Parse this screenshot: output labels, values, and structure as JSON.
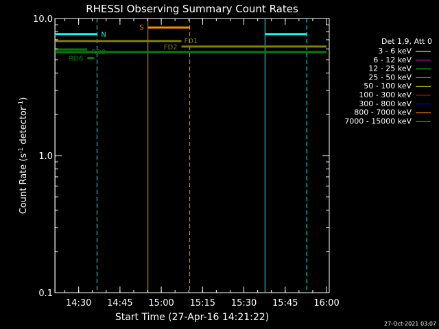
{
  "chart_data": {
    "type": "line",
    "title": "RHESSI Observing Summary Count Rates",
    "xlabel": "Start Time (27-Apr-16 14:21:22)",
    "ylabel_main": "Count Rate (s",
    "ylabel_sup1": "-1",
    "ylabel_mid": " detector",
    "ylabel_sup2": "-1",
    "ylabel_end": ")",
    "y_scale": "log",
    "ylim": [
      0.1,
      10.0
    ],
    "xlim": [
      "14:21:22",
      "16:01:00"
    ],
    "x_ticks": [
      "14:30",
      "14:45",
      "15:00",
      "15:15",
      "15:30",
      "15:45",
      "16:00"
    ],
    "y_ticks": [
      "0.1",
      "1.0",
      "10.0"
    ],
    "timestamp": "27-Oct-2021 03:07",
    "legend": {
      "position": "right",
      "header": "Det 1,9, Att 0",
      "entries": [
        {
          "label": "3 - 6 keV",
          "color": "#ffffff"
        },
        {
          "label": "6 - 12 keV",
          "color": "#ff00ff"
        },
        {
          "label": "12 - 25 keV",
          "color": "#00ff00"
        },
        {
          "label": "25 - 50 keV",
          "color": "#00ffff"
        },
        {
          "label": "50 - 100 keV",
          "color": "#ffff00"
        },
        {
          "label": "100 - 300 keV",
          "color": "#ff0000"
        },
        {
          "label": "300 - 800 keV",
          "color": "#0000ff"
        },
        {
          "label": "800 - 7000 keV",
          "color": "#ff8c00"
        },
        {
          "label": "7000 - 15000 keV",
          "color": "#808000"
        }
      ]
    },
    "vertical_lines": [
      {
        "time": "14:21:30",
        "style": "solid",
        "color": "#00ffff"
      },
      {
        "time": "14:36:40",
        "style": "dashed",
        "color": "#00ffff"
      },
      {
        "time": "14:55:10",
        "style": "solid",
        "color": "#ff8c00"
      },
      {
        "time": "15:10:20",
        "style": "dashed",
        "color": "#ff8c00"
      },
      {
        "time": "15:37:40",
        "style": "solid",
        "color": "#00ffff"
      },
      {
        "time": "15:52:50",
        "style": "dashed",
        "color": "#00ffff"
      }
    ],
    "flag_segments": [
      {
        "label": "N",
        "start": "14:21:30",
        "end": "14:36:40",
        "y": 7.7,
        "color": "#00ffff"
      },
      {
        "label": "",
        "start": "15:37:40",
        "end": "15:52:50",
        "y": 7.7,
        "color": "#00ffff"
      },
      {
        "label": "S",
        "start": "14:55:10",
        "end": "15:10:20",
        "y": 8.6,
        "color": "#ff8c00"
      },
      {
        "label": "FD1",
        "start": "14:21:30",
        "end": "15:07:20",
        "y": 6.85,
        "color": "#808000"
      },
      {
        "label": "FD2",
        "start": "15:07:20",
        "end": "16:00:00",
        "y": 6.25,
        "color": "#808000"
      },
      {
        "label": "RD9",
        "start": "14:21:30",
        "end": "16:00:00",
        "y": 5.7,
        "color": "#008000"
      },
      {
        "label": "RD6",
        "start": "14:33:10",
        "end": "14:35:40",
        "y": 5.15,
        "color": "#008000"
      },
      {
        "label": "",
        "start": "14:21:30",
        "end": "14:33:10",
        "y": 5.95,
        "color": "#008000"
      }
    ]
  }
}
